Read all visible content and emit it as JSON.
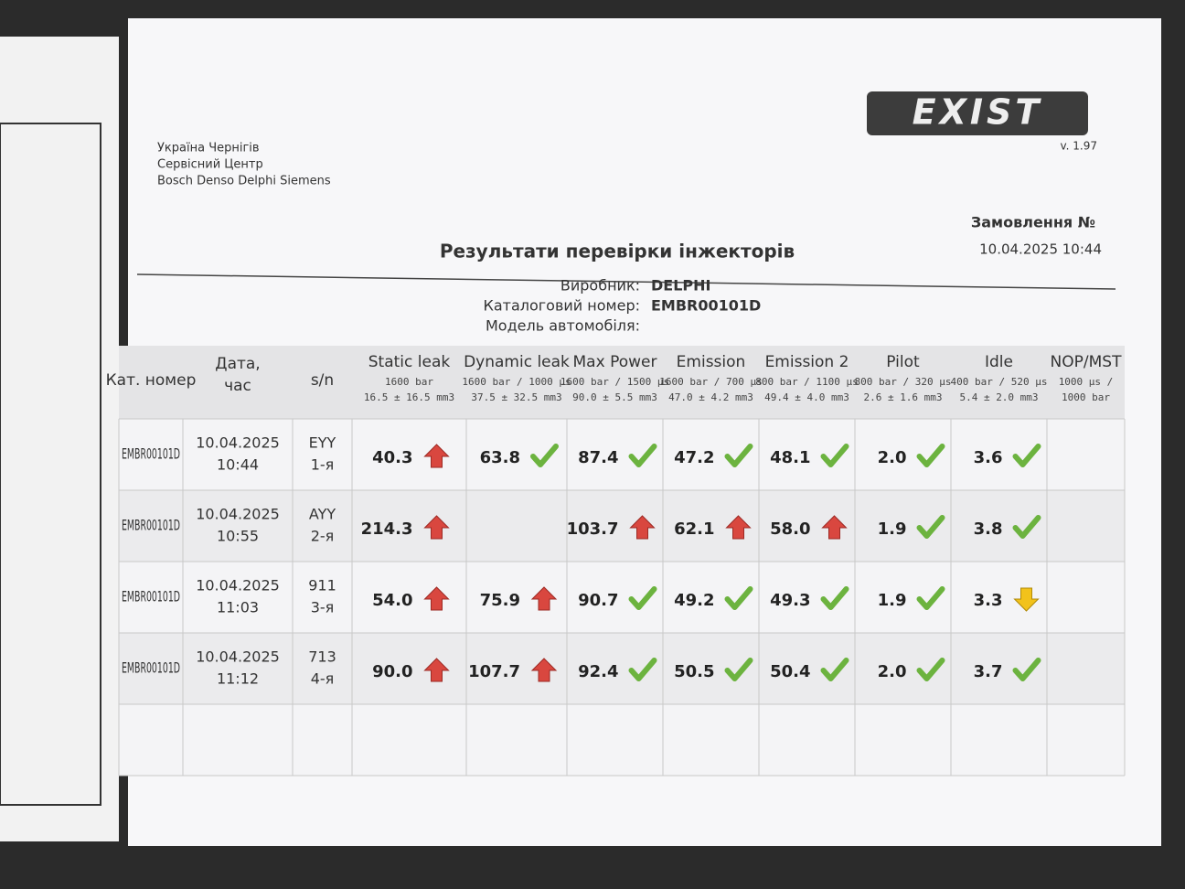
{
  "header": {
    "organization": [
      "Україна Чернігів",
      "Сервісний Центр",
      "Bosch Denso Delphi Siemens"
    ],
    "logo": "EXIST",
    "version": "v. 1.97",
    "order": "Замовлення №",
    "datetime": "10.04.2025  10:44"
  },
  "title": "Результати перевірки інжекторів",
  "info": [
    {
      "label": "Виробник:",
      "value": "DELPHI"
    },
    {
      "label": "Каталоговий номер:",
      "value": "EMBR00101D"
    },
    {
      "label": "Модель автомобіля:"
    }
  ],
  "table": {
    "columns": [
      {
        "title": [
          "Кат. номер"
        ]
      },
      {
        "title": [
          "Дата,",
          "час"
        ]
      },
      {
        "title": [
          "s/n"
        ]
      },
      {
        "title": [
          "Static leak"
        ],
        "params": [
          "1600 bar",
          "16.5 ± 16.5 mm3"
        ]
      },
      {
        "title": [
          "Dynamic leak"
        ],
        "params": [
          "1600 bar / 1000 µs",
          "37.5 ± 32.5 mm3"
        ]
      },
      {
        "title": [
          "Max Power"
        ],
        "params": [
          "1600 bar / 1500 µs",
          "90.0 ± 5.5 mm3"
        ]
      },
      {
        "title": [
          "Emission"
        ],
        "params": [
          "1600 bar / 700 µs",
          "47.0 ± 4.2 mm3"
        ]
      },
      {
        "title": [
          "Emission 2"
        ],
        "params": [
          "800 bar / 1100 µs",
          "49.4 ± 4.0 mm3"
        ]
      },
      {
        "title": [
          "Pilot"
        ],
        "params": [
          "800 bar / 320 µs",
          "2.6 ± 1.6 mm3"
        ]
      },
      {
        "title": [
          "Idle"
        ],
        "params": [
          "400 bar / 520 µs",
          "5.4 ± 2.0 mm3"
        ]
      },
      {
        "title": [
          "NOP/MST"
        ],
        "params": [
          "1000 µs /",
          "1000 bar"
        ]
      }
    ],
    "rows": [
      {
        "catalog": "EMBR00101D",
        "date": "10.04.2025",
        "time": "10:44",
        "sn": "EYY",
        "position": "1-я",
        "results": [
          {
            "value": "40.3",
            "status": "up"
          },
          {
            "value": "63.8",
            "status": "ok"
          },
          {
            "value": "87.4",
            "status": "ok"
          },
          {
            "value": "47.2",
            "status": "ok"
          },
          {
            "value": "48.1",
            "status": "ok"
          },
          {
            "value": "2.0",
            "status": "ok"
          },
          {
            "value": "3.6",
            "status": "ok"
          }
        ]
      },
      {
        "catalog": "EMBR00101D",
        "date": "10.04.2025",
        "time": "10:55",
        "sn": "AYY",
        "position": "2-я",
        "results": [
          {
            "value": "214.3",
            "status": "up"
          },
          null,
          {
            "value": "103.7",
            "status": "up"
          },
          {
            "value": "62.1",
            "status": "up"
          },
          {
            "value": "58.0",
            "status": "up"
          },
          {
            "value": "1.9",
            "status": "ok"
          },
          {
            "value": "3.8",
            "status": "ok"
          }
        ]
      },
      {
        "catalog": "EMBR00101D",
        "date": "10.04.2025",
        "time": "11:03",
        "sn": "911",
        "position": "3-я",
        "results": [
          {
            "value": "54.0",
            "status": "up"
          },
          {
            "value": "75.9",
            "status": "up"
          },
          {
            "value": "90.7",
            "status": "ok"
          },
          {
            "value": "49.2",
            "status": "ok"
          },
          {
            "value": "49.3",
            "status": "ok"
          },
          {
            "value": "1.9",
            "status": "ok"
          },
          {
            "value": "3.3",
            "status": "down"
          }
        ]
      },
      {
        "catalog": "EMBR00101D",
        "date": "10.04.2025",
        "time": "11:12",
        "sn": "713",
        "position": "4-я",
        "results": [
          {
            "value": "90.0",
            "status": "up"
          },
          {
            "value": "107.7",
            "status": "up"
          },
          {
            "value": "92.4",
            "status": "ok"
          },
          {
            "value": "50.5",
            "status": "ok"
          },
          {
            "value": "50.4",
            "status": "ok"
          },
          {
            "value": "2.0",
            "status": "ok"
          },
          {
            "value": "3.7",
            "status": "ok"
          }
        ]
      }
    ]
  }
}
